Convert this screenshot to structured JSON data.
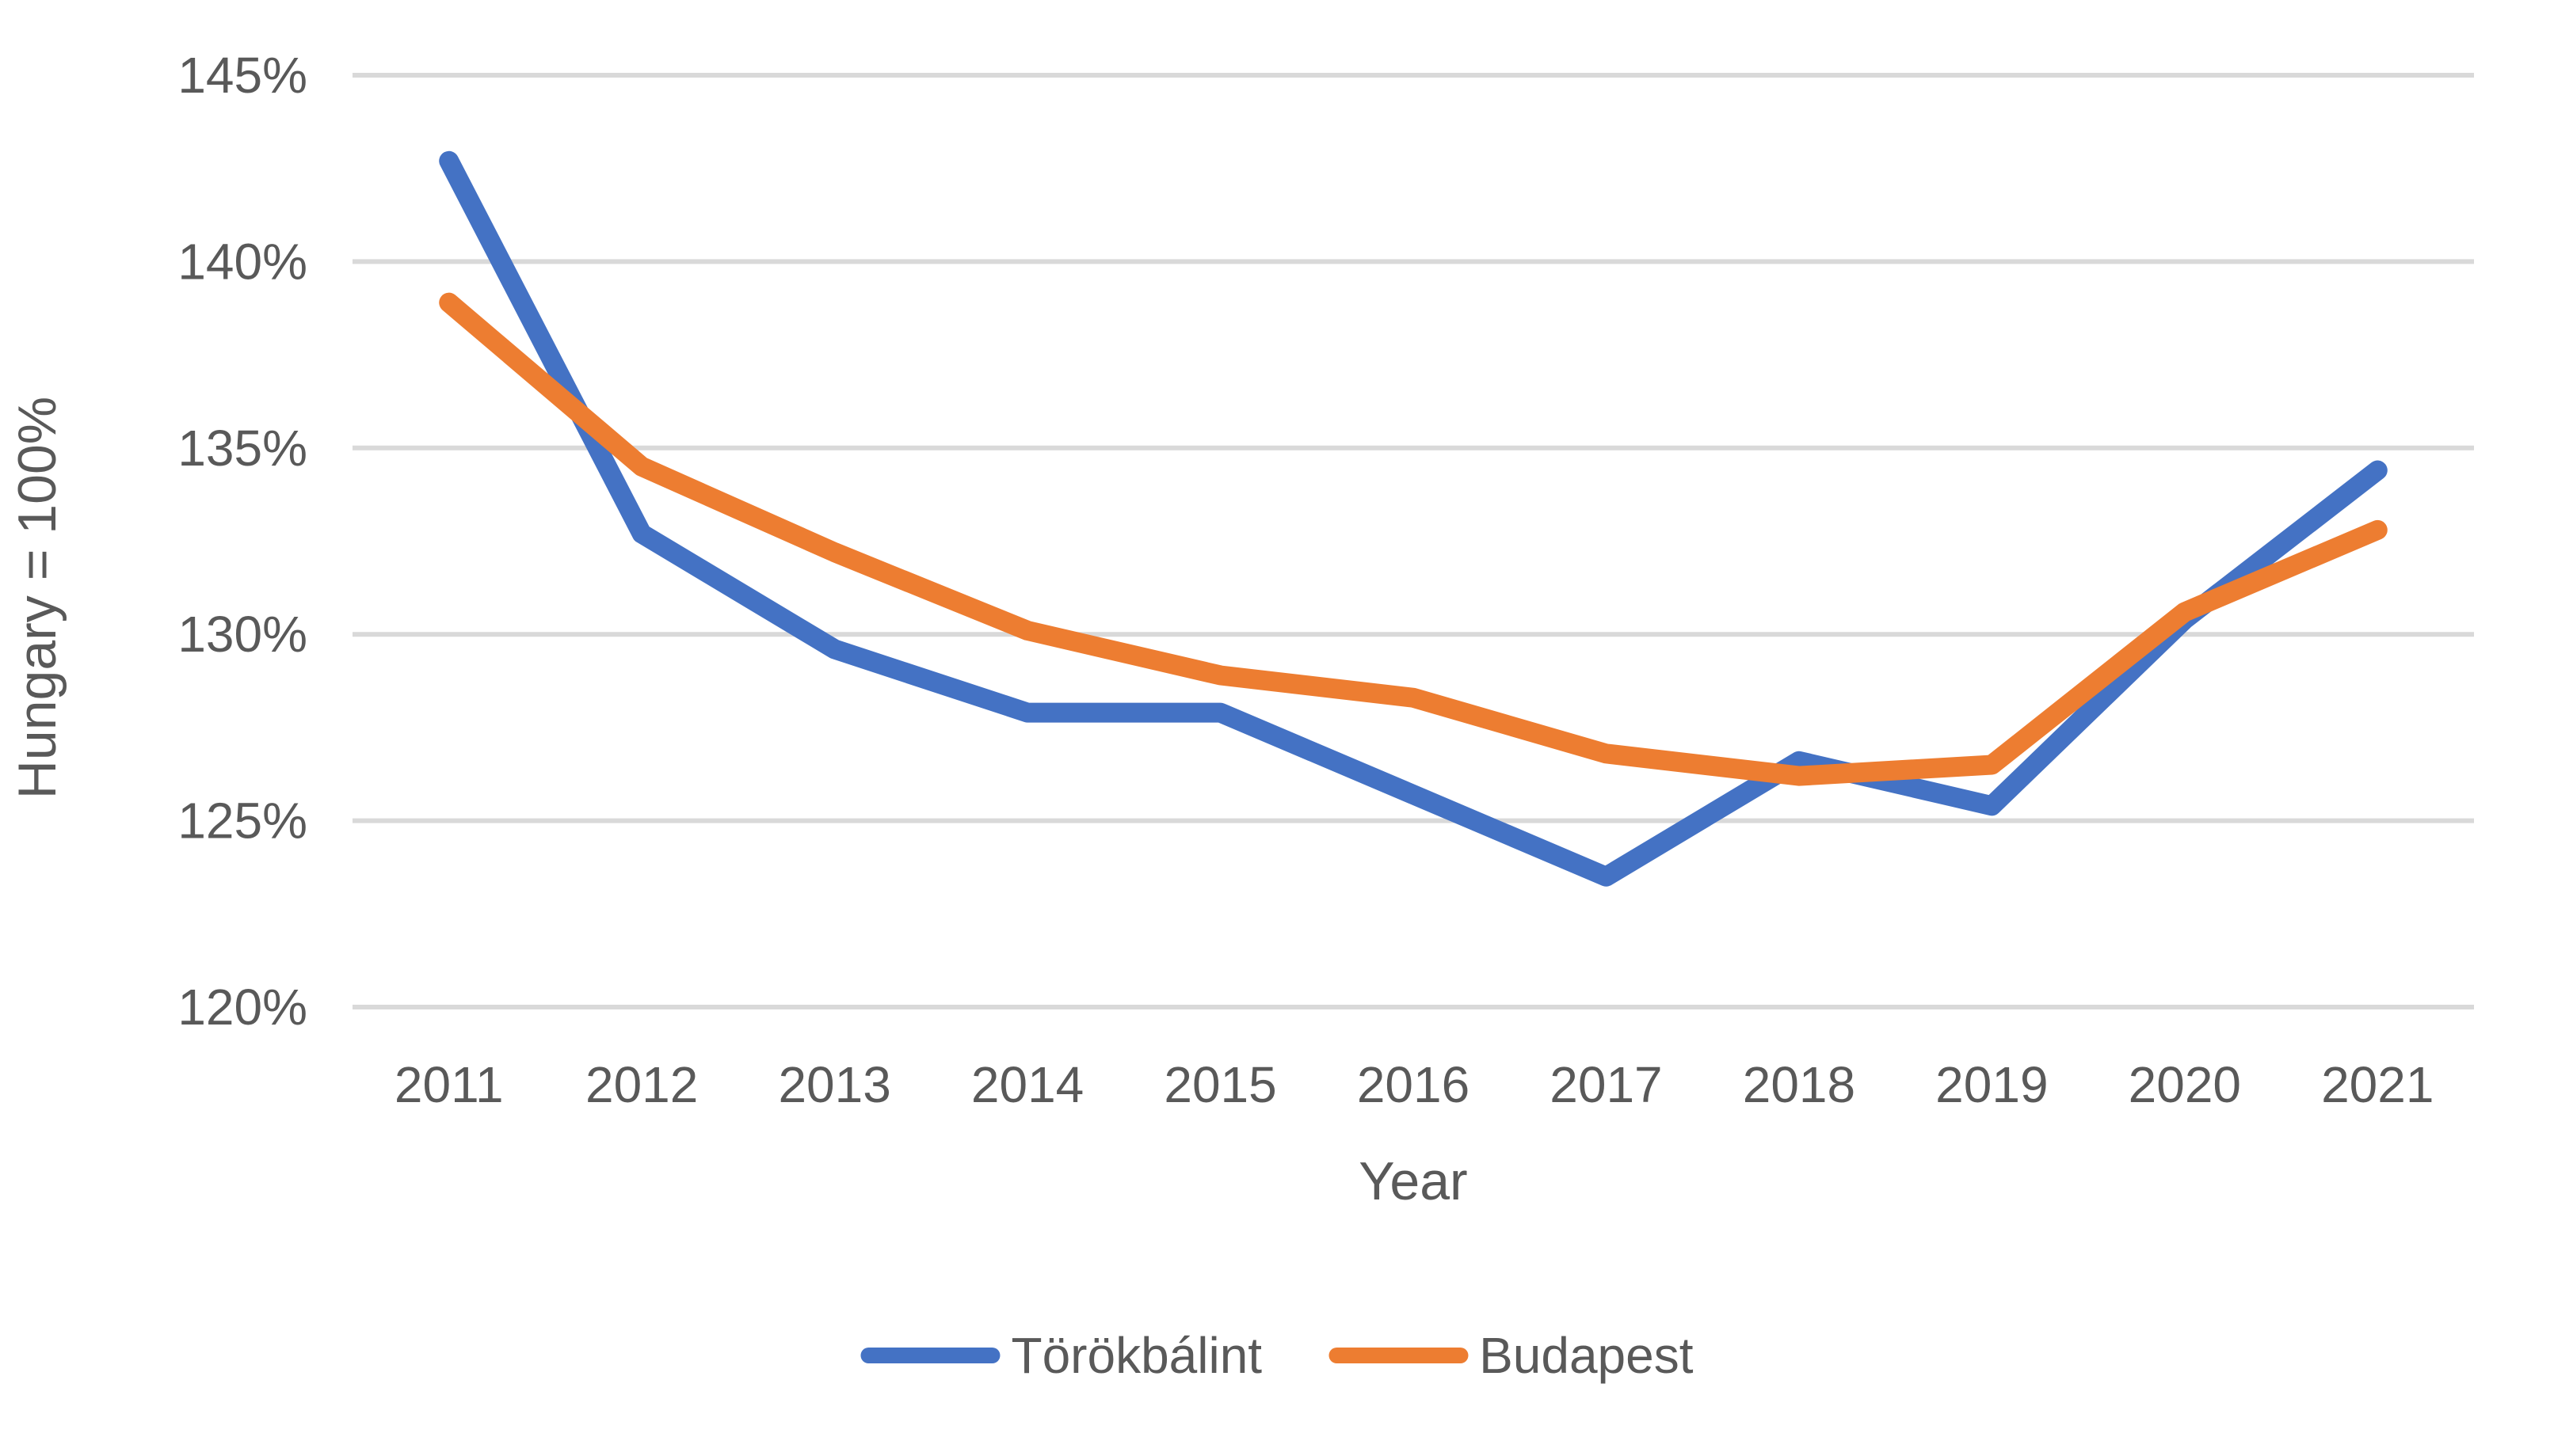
{
  "chart_data": {
    "type": "line",
    "title": "",
    "xlabel": "Year",
    "ylabel": "Hungary = 100%",
    "categories": [
      "2011",
      "2012",
      "2013",
      "2014",
      "2015",
      "2016",
      "2017",
      "2018",
      "2019",
      "2020",
      "2021"
    ],
    "series": [
      {
        "name": "Törökbálint",
        "color": "#4472C4",
        "values": [
          142.7,
          132.7,
          129.6,
          127.9,
          127.9,
          125.7,
          123.5,
          126.6,
          125.4,
          130.4,
          134.4
        ]
      },
      {
        "name": "Budapest",
        "color": "#ED7D31",
        "values": [
          138.9,
          134.5,
          132.2,
          130.1,
          128.9,
          128.3,
          126.8,
          126.2,
          126.5,
          130.6,
          132.8
        ]
      }
    ],
    "ylim": [
      120,
      145
    ],
    "y_tick_values": [
      120,
      125,
      130,
      135,
      140,
      145
    ],
    "y_tick_labels": [
      "120%",
      "125%",
      "130%",
      "135%",
      "140%",
      "145%"
    ],
    "grid": true,
    "legend_position": "bottom",
    "gridline_color": "#D9D9D9",
    "text_color": "#595959",
    "background_color": "#FFFFFF"
  }
}
